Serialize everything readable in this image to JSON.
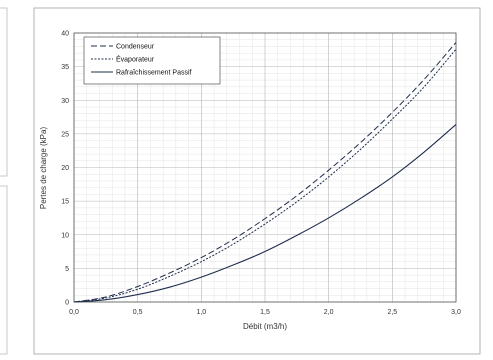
{
  "chart_data": {
    "type": "line",
    "title": "",
    "xlabel": "Débit (m3/h)",
    "ylabel": "Pertes de charge (kPa)",
    "xlim": [
      0,
      3
    ],
    "ylim": [
      0,
      40
    ],
    "x_ticks": [
      "0,0",
      "0,5",
      "1,0",
      "1,5",
      "2,0",
      "2,5",
      "3,0"
    ],
    "y_ticks": [
      "0",
      "5",
      "10",
      "15",
      "20",
      "25",
      "30",
      "35",
      "40"
    ],
    "grid": true,
    "legend_position": "top-left",
    "series": [
      {
        "name": "Condenseur",
        "style": "dashed",
        "color": "#1f2d4e",
        "x": [
          0,
          0.25,
          0.5,
          0.75,
          1.0,
          1.25,
          1.5,
          1.75,
          2.0,
          2.25,
          2.5,
          2.75,
          3.0
        ],
        "y": [
          0,
          0.75,
          2.3,
          4.3,
          6.6,
          9.3,
          12.4,
          15.8,
          19.6,
          23.7,
          28.2,
          33.1,
          38.6
        ]
      },
      {
        "name": "Évaporateur",
        "style": "dotted",
        "color": "#1f2d4e",
        "x": [
          0,
          0.25,
          0.5,
          0.75,
          1.0,
          1.25,
          1.5,
          1.75,
          2.0,
          2.25,
          2.5,
          2.75,
          3.0
        ],
        "y": [
          0,
          0.6,
          1.9,
          3.8,
          6.0,
          8.6,
          11.6,
          14.9,
          18.6,
          22.7,
          27.2,
          32.0,
          37.6
        ]
      },
      {
        "name": "Rafraîchissement Passif",
        "style": "solid",
        "color": "#1f2d4e",
        "x": [
          0,
          0.25,
          0.5,
          0.75,
          1.0,
          1.25,
          1.5,
          1.75,
          2.0,
          2.25,
          2.5,
          2.75,
          3.0
        ],
        "y": [
          0,
          0.35,
          1.1,
          2.2,
          3.7,
          5.5,
          7.5,
          9.9,
          12.5,
          15.4,
          18.6,
          22.3,
          26.4
        ]
      }
    ]
  }
}
